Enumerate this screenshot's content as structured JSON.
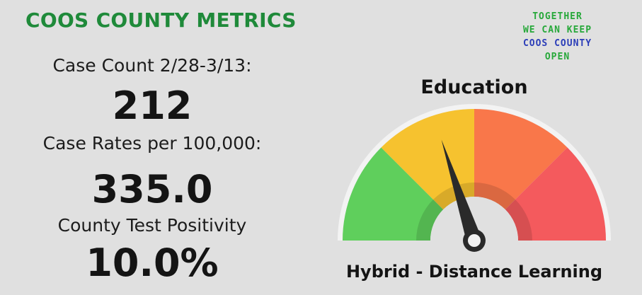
{
  "header": {
    "title": "COOS COUNTY METRICS"
  },
  "slogan": {
    "line1": "TOGETHER",
    "line2": "WE CAN KEEP",
    "line3": "COOS COUNTY",
    "line4": "OPEN"
  },
  "metrics": {
    "case_count_label": "Case Count 2/28-3/13:",
    "case_count_value": "212",
    "case_rate_label": "Case Rates per 100,000:",
    "case_rate_value": "335.0",
    "positivity_label": "County Test Positivity",
    "positivity_value": "10.0%"
  },
  "gauge": {
    "title": "Education",
    "caption": "Hybrid - Distance Learning",
    "level_fraction": 0.4,
    "segment_colors": [
      "#5fcf5c",
      "#f6c22f",
      "#f9774a",
      "#f45a5d"
    ]
  }
}
